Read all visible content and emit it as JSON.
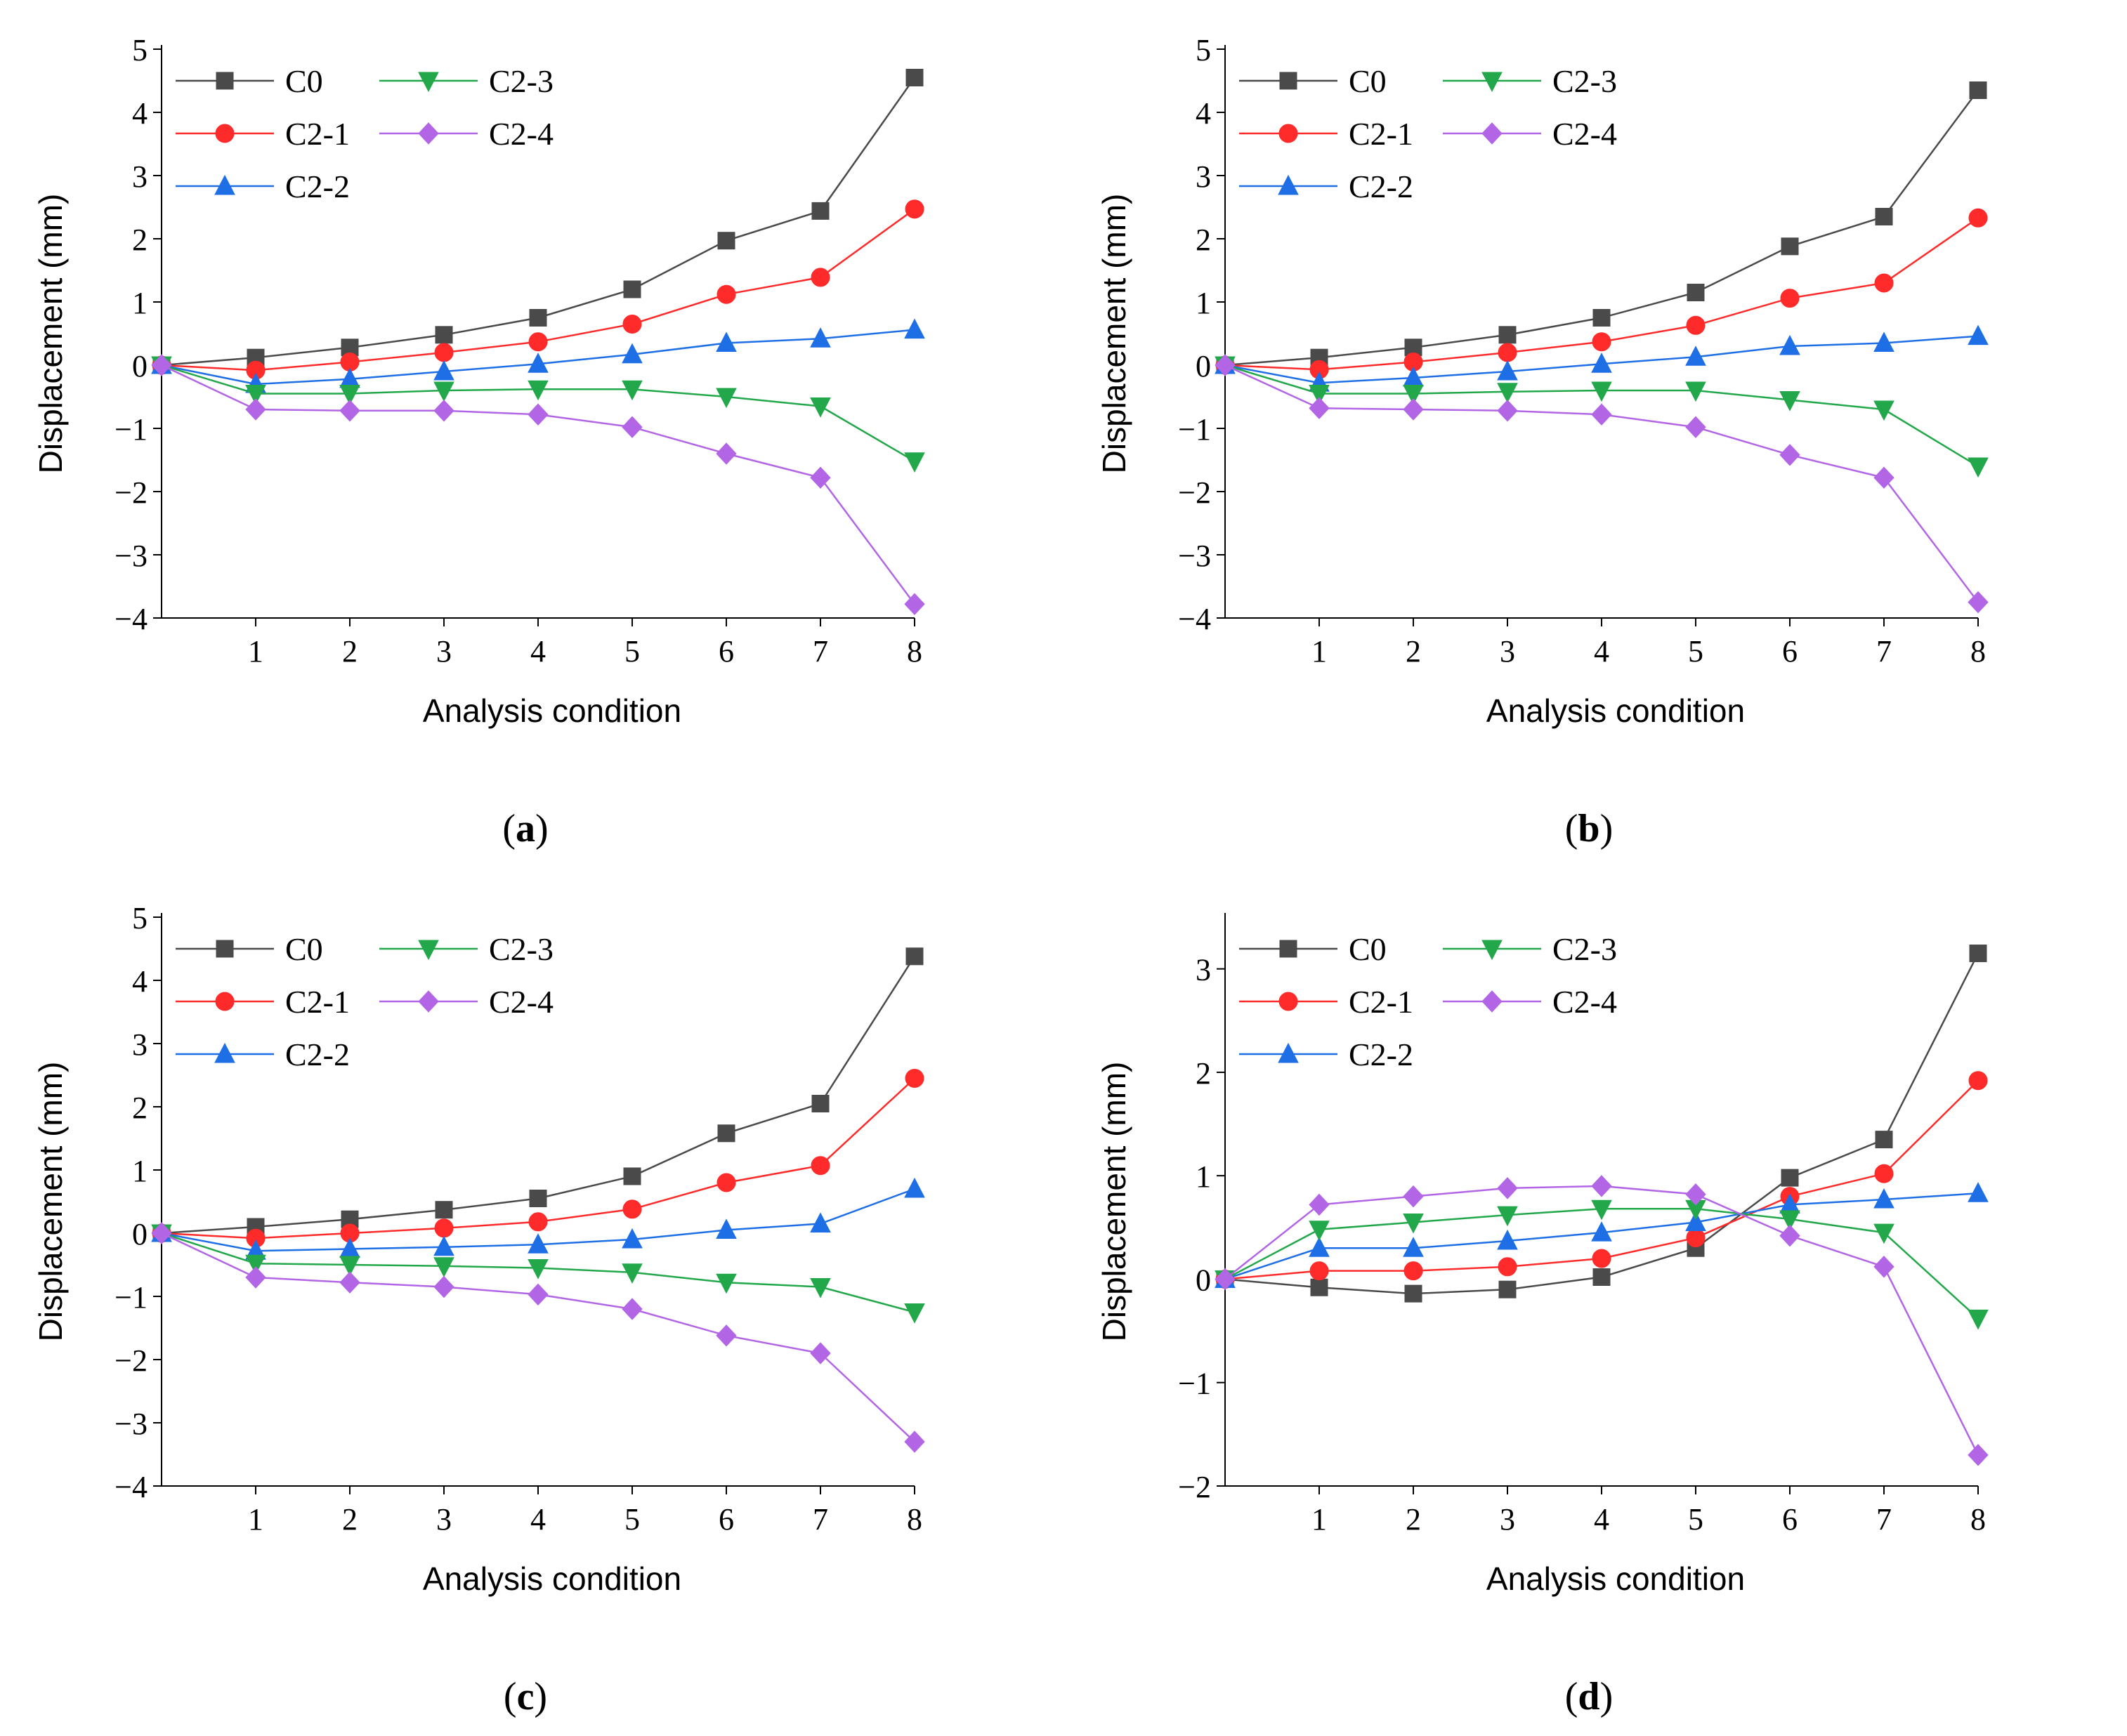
{
  "figure": {
    "panels": [
      {
        "label": "a",
        "caption_open": "(",
        "caption_close": ")"
      },
      {
        "label": "b",
        "caption_open": "(",
        "caption_close": ")"
      },
      {
        "label": "c",
        "caption_open": "(",
        "caption_close": ")"
      },
      {
        "label": "d",
        "caption_open": "(",
        "caption_close": ")"
      }
    ]
  },
  "colors": {
    "C0": "#4a4a4a",
    "C2-1": "#ff2a2a",
    "C2-2": "#1e6fe6",
    "C2-3": "#22a84a",
    "C2-4": "#b266e6"
  },
  "chart_data": [
    {
      "type": "line",
      "panel": "a",
      "xlabel": "Analysis condition",
      "ylabel": "Displacement  (mm)",
      "x": [
        0,
        1,
        2,
        3,
        4,
        5,
        6,
        7,
        8
      ],
      "xticks": [
        1,
        2,
        3,
        4,
        5,
        6,
        7,
        8
      ],
      "ylim": [
        -4,
        5
      ],
      "yticks": [
        -4,
        -3,
        -2,
        -1,
        0,
        1,
        2,
        3,
        4,
        5
      ],
      "legend": "top-left",
      "series": [
        {
          "name": "C0",
          "marker": "square",
          "values": [
            0,
            0.12,
            0.28,
            0.48,
            0.75,
            1.2,
            1.97,
            2.44,
            4.55
          ]
        },
        {
          "name": "C2-1",
          "marker": "circle",
          "values": [
            0,
            -0.08,
            0.05,
            0.2,
            0.37,
            0.65,
            1.12,
            1.39,
            2.47
          ]
        },
        {
          "name": "C2-2",
          "marker": "triangle-up",
          "values": [
            0,
            -0.3,
            -0.22,
            -0.1,
            0.02,
            0.17,
            0.35,
            0.42,
            0.56
          ]
        },
        {
          "name": "C2-3",
          "marker": "triangle-down",
          "values": [
            0,
            -0.45,
            -0.45,
            -0.4,
            -0.38,
            -0.38,
            -0.5,
            -0.65,
            -1.52
          ]
        },
        {
          "name": "C2-4",
          "marker": "diamond",
          "values": [
            0,
            -0.7,
            -0.72,
            -0.72,
            -0.78,
            -0.98,
            -1.4,
            -1.78,
            -3.78
          ]
        }
      ]
    },
    {
      "type": "line",
      "panel": "b",
      "xlabel": "Analysis condition",
      "ylabel": "Displacement  (mm)",
      "x": [
        0,
        1,
        2,
        3,
        4,
        5,
        6,
        7,
        8
      ],
      "xticks": [
        1,
        2,
        3,
        4,
        5,
        6,
        7,
        8
      ],
      "ylim": [
        -4,
        5
      ],
      "yticks": [
        -4,
        -3,
        -2,
        -1,
        0,
        1,
        2,
        3,
        4,
        5
      ],
      "legend": "top-left",
      "series": [
        {
          "name": "C0",
          "marker": "square",
          "values": [
            0,
            0.12,
            0.28,
            0.48,
            0.75,
            1.15,
            1.88,
            2.35,
            4.35
          ]
        },
        {
          "name": "C2-1",
          "marker": "circle",
          "values": [
            0,
            -0.07,
            0.05,
            0.2,
            0.37,
            0.63,
            1.06,
            1.3,
            2.33
          ]
        },
        {
          "name": "C2-2",
          "marker": "triangle-up",
          "values": [
            0,
            -0.28,
            -0.2,
            -0.1,
            0.02,
            0.13,
            0.3,
            0.35,
            0.46
          ]
        },
        {
          "name": "C2-3",
          "marker": "triangle-down",
          "values": [
            0,
            -0.45,
            -0.45,
            -0.42,
            -0.4,
            -0.4,
            -0.55,
            -0.7,
            -1.6
          ]
        },
        {
          "name": "C2-4",
          "marker": "diamond",
          "values": [
            0,
            -0.68,
            -0.7,
            -0.72,
            -0.78,
            -0.98,
            -1.42,
            -1.78,
            -3.75
          ]
        }
      ]
    },
    {
      "type": "line",
      "panel": "c",
      "xlabel": "Analysis condition",
      "ylabel": "Displacement  (mm)",
      "x": [
        0,
        1,
        2,
        3,
        4,
        5,
        6,
        7,
        8
      ],
      "xticks": [
        1,
        2,
        3,
        4,
        5,
        6,
        7,
        8
      ],
      "ylim": [
        -4,
        5
      ],
      "yticks": [
        -4,
        -3,
        -2,
        -1,
        0,
        1,
        2,
        3,
        4,
        5
      ],
      "legend": "top-left",
      "series": [
        {
          "name": "C0",
          "marker": "square",
          "values": [
            0,
            0.1,
            0.22,
            0.37,
            0.55,
            0.9,
            1.58,
            2.05,
            4.38
          ]
        },
        {
          "name": "C2-1",
          "marker": "circle",
          "values": [
            0,
            -0.08,
            0.0,
            0.08,
            0.18,
            0.38,
            0.8,
            1.07,
            2.45
          ]
        },
        {
          "name": "C2-2",
          "marker": "triangle-up",
          "values": [
            0,
            -0.28,
            -0.25,
            -0.22,
            -0.18,
            -0.1,
            0.05,
            0.15,
            0.7
          ]
        },
        {
          "name": "C2-3",
          "marker": "triangle-down",
          "values": [
            0,
            -0.48,
            -0.5,
            -0.52,
            -0.55,
            -0.62,
            -0.78,
            -0.85,
            -1.25
          ]
        },
        {
          "name": "C2-4",
          "marker": "diamond",
          "values": [
            0,
            -0.7,
            -0.78,
            -0.85,
            -0.97,
            -1.2,
            -1.62,
            -1.9,
            -3.3
          ]
        }
      ]
    },
    {
      "type": "line",
      "panel": "d",
      "xlabel": "Analysis condition",
      "ylabel": "Displacement  (mm)",
      "x": [
        0,
        1,
        2,
        3,
        4,
        5,
        6,
        7,
        8
      ],
      "xticks": [
        1,
        2,
        3,
        4,
        5,
        6,
        7,
        8
      ],
      "ylim": [
        -2,
        3.5
      ],
      "yticks": [
        -2,
        -1,
        0,
        1,
        2,
        3
      ],
      "legend": "top-left",
      "series": [
        {
          "name": "C0",
          "marker": "square",
          "values": [
            0,
            -0.08,
            -0.14,
            -0.1,
            0.02,
            0.3,
            0.98,
            1.35,
            3.15
          ]
        },
        {
          "name": "C2-1",
          "marker": "circle",
          "values": [
            0,
            0.08,
            0.08,
            0.12,
            0.2,
            0.4,
            0.8,
            1.02,
            1.92
          ]
        },
        {
          "name": "C2-2",
          "marker": "triangle-up",
          "values": [
            0,
            0.3,
            0.3,
            0.37,
            0.45,
            0.55,
            0.72,
            0.77,
            0.83
          ]
        },
        {
          "name": "C2-3",
          "marker": "triangle-down",
          "values": [
            0,
            0.48,
            0.55,
            0.62,
            0.68,
            0.68,
            0.58,
            0.45,
            -0.38
          ]
        },
        {
          "name": "C2-4",
          "marker": "diamond",
          "values": [
            0,
            0.72,
            0.8,
            0.88,
            0.9,
            0.82,
            0.42,
            0.12,
            -1.7
          ]
        }
      ]
    }
  ]
}
